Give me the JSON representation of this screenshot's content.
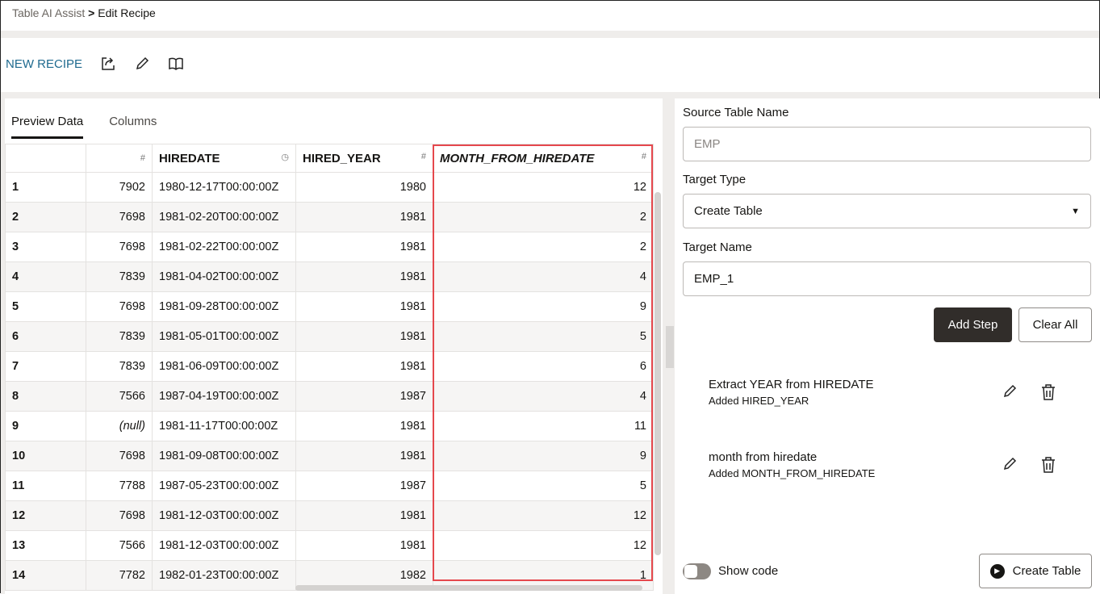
{
  "breadcrumb": {
    "parent": "Table AI Assist",
    "separator": ">",
    "current": "Edit Recipe"
  },
  "toolbar": {
    "title": "NEW RECIPE",
    "icons": [
      "share-icon",
      "pencil-icon",
      "book-icon"
    ]
  },
  "tabs": [
    {
      "label": "Preview Data",
      "active": true
    },
    {
      "label": "Columns",
      "active": false
    }
  ],
  "table": {
    "columns": [
      {
        "name": "",
        "type": "#"
      },
      {
        "name": "HIREDATE",
        "type": "clock"
      },
      {
        "name": "HIRED_YEAR",
        "type": "#"
      },
      {
        "name": "MONTH_FROM_HIREDATE",
        "type": "#"
      }
    ],
    "first_col_type": "#",
    "rows": [
      [
        "1",
        "7902",
        "1980-12-17T00:00:00Z",
        "1980",
        "12"
      ],
      [
        "2",
        "7698",
        "1981-02-20T00:00:00Z",
        "1981",
        "2"
      ],
      [
        "3",
        "7698",
        "1981-02-22T00:00:00Z",
        "1981",
        "2"
      ],
      [
        "4",
        "7839",
        "1981-04-02T00:00:00Z",
        "1981",
        "4"
      ],
      [
        "5",
        "7698",
        "1981-09-28T00:00:00Z",
        "1981",
        "9"
      ],
      [
        "6",
        "7839",
        "1981-05-01T00:00:00Z",
        "1981",
        "5"
      ],
      [
        "7",
        "7839",
        "1981-06-09T00:00:00Z",
        "1981",
        "6"
      ],
      [
        "8",
        "7566",
        "1987-04-19T00:00:00Z",
        "1987",
        "4"
      ],
      [
        "9",
        "(null)",
        "1981-11-17T00:00:00Z",
        "1981",
        "11"
      ],
      [
        "10",
        "7698",
        "1981-09-08T00:00:00Z",
        "1981",
        "9"
      ],
      [
        "11",
        "7788",
        "1987-05-23T00:00:00Z",
        "1987",
        "5"
      ],
      [
        "12",
        "7698",
        "1981-12-03T00:00:00Z",
        "1981",
        "12"
      ],
      [
        "13",
        "7566",
        "1981-12-03T00:00:00Z",
        "1981",
        "12"
      ],
      [
        "14",
        "7782",
        "1982-01-23T00:00:00Z",
        "1982",
        "1"
      ]
    ]
  },
  "form": {
    "source_label": "Source Table Name",
    "source_placeholder": "EMP",
    "target_type_label": "Target Type",
    "target_type_value": "Create Table",
    "target_name_label": "Target Name",
    "target_name_value": "EMP_1",
    "add_step": "Add Step",
    "clear_all": "Clear All"
  },
  "steps": [
    {
      "title": "Extract YEAR from HIREDATE",
      "subtitle": "Added HIRED_YEAR"
    },
    {
      "title": "month from hiredate",
      "subtitle": "Added MONTH_FROM_HIREDATE"
    }
  ],
  "footer": {
    "show_code": "Show code",
    "show_code_on": false,
    "create_table": "Create Table"
  },
  "colors": {
    "accent": "#1f6a8f",
    "highlight": "#e5484d",
    "primary_button": "#312d2a"
  }
}
